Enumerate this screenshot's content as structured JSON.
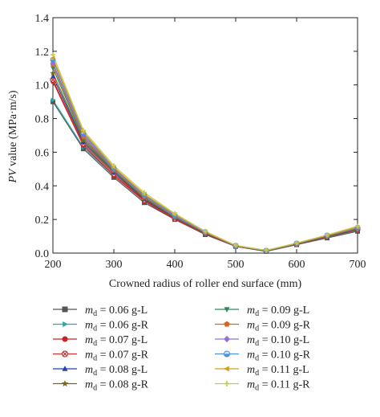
{
  "chart_data": {
    "type": "line",
    "xlabel": "Crowned radius of roller end surface (mm)",
    "ylabel_italic": "PV",
    "ylabel_rest": " value (MPa·m/s)",
    "xlim": [
      200,
      700
    ],
    "ylim": [
      0.0,
      1.4
    ],
    "x_ticks": [
      "200",
      "300",
      "400",
      "500",
      "600",
      "700"
    ],
    "y_ticks": [
      "0.0",
      "0.2",
      "0.4",
      "0.6",
      "0.8",
      "1.0",
      "1.2",
      "1.4"
    ],
    "grid": false,
    "legend_placement": "bottom",
    "x": [
      200,
      250,
      300,
      350,
      400,
      450,
      500,
      550,
      600,
      650,
      700
    ],
    "series": [
      {
        "name": "m_d = 0.06 g-L",
        "label_var": "m",
        "label_sub": "d",
        "label_eq": " = 0.06 g-L",
        "color": "#555555",
        "marker": "square",
        "values": [
          0.9,
          0.62,
          0.45,
          0.3,
          0.2,
          0.11,
          0.04,
          0.01,
          0.05,
          0.09,
          0.13
        ]
      },
      {
        "name": "m_d = 0.06 g-R",
        "label_var": "m",
        "label_sub": "d",
        "label_eq": " = 0.06 g-R",
        "color": "#2aa6b0",
        "marker": "triangle-right",
        "values": [
          0.91,
          0.63,
          0.46,
          0.31,
          0.2,
          0.115,
          0.04,
          0.01,
          0.05,
          0.095,
          0.135
        ]
      },
      {
        "name": "m_d = 0.07 g-L",
        "label_var": "m",
        "label_sub": "d",
        "label_eq": " = 0.07 g-L",
        "color": "#cc2222",
        "marker": "circle",
        "values": [
          1.02,
          0.64,
          0.46,
          0.31,
          0.2,
          0.115,
          0.04,
          0.012,
          0.052,
          0.096,
          0.138
        ]
      },
      {
        "name": "m_d = 0.07 g-R",
        "label_var": "m",
        "label_sub": "d",
        "label_eq": " = 0.07 g-R",
        "color": "#cc3333",
        "marker": "circle-x",
        "values": [
          1.03,
          0.65,
          0.47,
          0.315,
          0.205,
          0.118,
          0.041,
          0.012,
          0.053,
          0.098,
          0.14
        ]
      },
      {
        "name": "m_d = 0.08 g-L",
        "label_var": "m",
        "label_sub": "d",
        "label_eq": " = 0.08 g-L",
        "color": "#2244aa",
        "marker": "triangle-up",
        "values": [
          1.05,
          0.66,
          0.48,
          0.32,
          0.21,
          0.12,
          0.042,
          0.013,
          0.054,
          0.1,
          0.142
        ]
      },
      {
        "name": "m_d = 0.08 g-R",
        "label_var": "m",
        "label_sub": "d",
        "label_eq": " = 0.08 g-R",
        "color": "#7a6a1a",
        "marker": "star",
        "values": [
          1.07,
          0.67,
          0.485,
          0.325,
          0.212,
          0.121,
          0.042,
          0.013,
          0.055,
          0.1,
          0.144
        ]
      },
      {
        "name": "m_d = 0.09 g-L",
        "label_var": "m",
        "label_sub": "d",
        "label_eq": " = 0.09 g-L",
        "color": "#2e8b57",
        "marker": "triangle-down",
        "values": [
          1.1,
          0.68,
          0.49,
          0.33,
          0.215,
          0.122,
          0.043,
          0.014,
          0.056,
          0.102,
          0.146
        ]
      },
      {
        "name": "m_d = 0.09 g-R",
        "label_var": "m",
        "label_sub": "d",
        "label_eq": " = 0.09 g-R",
        "color": "#d2691e",
        "marker": "pentagon",
        "values": [
          1.12,
          0.69,
          0.495,
          0.335,
          0.218,
          0.123,
          0.043,
          0.014,
          0.056,
          0.103,
          0.148
        ]
      },
      {
        "name": "m_d = 0.10 g-L",
        "label_var": "m",
        "label_sub": "d",
        "label_eq": " = 0.10 g-L",
        "color": "#9370db",
        "marker": "diamond",
        "values": [
          1.13,
          0.7,
          0.5,
          0.34,
          0.22,
          0.124,
          0.044,
          0.015,
          0.057,
          0.104,
          0.15
        ]
      },
      {
        "name": "m_d = 0.10 g-R",
        "label_var": "m",
        "label_sub": "d",
        "label_eq": " = 0.10 g-R",
        "color": "#4a90d9",
        "marker": "circle-half",
        "values": [
          1.15,
          0.71,
          0.505,
          0.345,
          0.225,
          0.125,
          0.044,
          0.015,
          0.058,
          0.105,
          0.152
        ]
      },
      {
        "name": "m_d = 0.11 g-L",
        "label_var": "m",
        "label_sub": "d",
        "label_eq": " = 0.11 g-L",
        "color": "#d4a017",
        "marker": "triangle-left",
        "values": [
          1.16,
          0.72,
          0.51,
          0.35,
          0.23,
          0.127,
          0.045,
          0.016,
          0.059,
          0.106,
          0.155
        ]
      },
      {
        "name": "m_d = 0.11 g-R",
        "label_var": "m",
        "label_sub": "d",
        "label_eq": " = 0.11 g-R",
        "color": "#c8c84a",
        "marker": "plus",
        "values": [
          1.18,
          0.73,
          0.52,
          0.36,
          0.235,
          0.13,
          0.046,
          0.017,
          0.06,
          0.108,
          0.16
        ]
      }
    ]
  }
}
